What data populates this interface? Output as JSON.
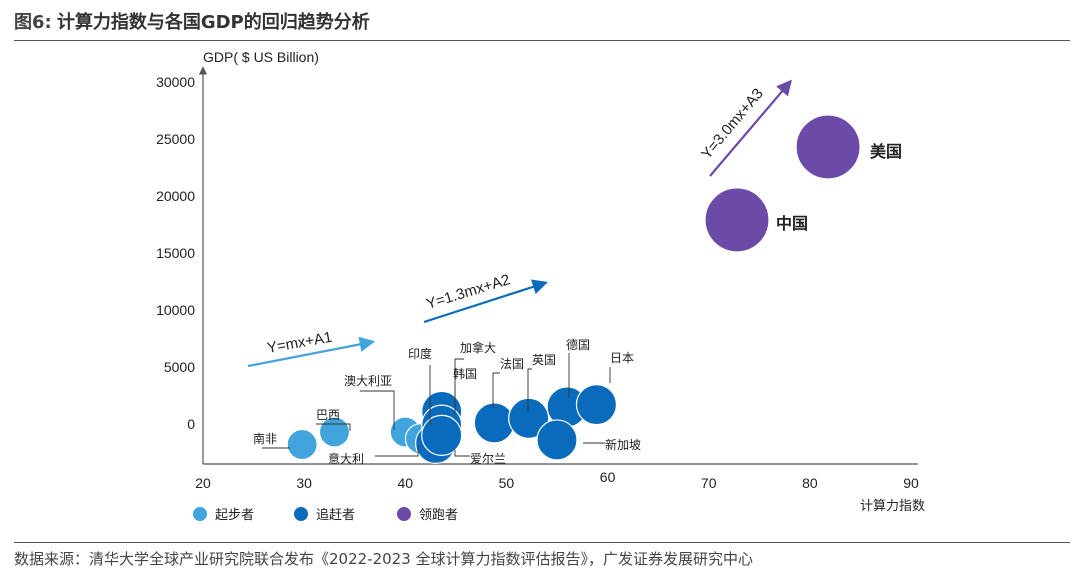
{
  "header": {
    "fig_label": "图6:",
    "title": "计算力指数与各国GDP的回归趋势分析"
  },
  "footer": {
    "source": "数据来源：清华大学全球产业研究院联合发布《2022-2023 全球计算力指数评估报告》，广发证券发展研究中心"
  },
  "colors": {
    "starter": "#41a4dc",
    "chaser": "#0a6bbd",
    "leader": "#6b4aa8",
    "axis": "#555555"
  },
  "chart_data": {
    "type": "scatter",
    "xlabel": "计算力指数",
    "ylabel": "GDP( $ US Billion)",
    "xlim": [
      20,
      90
    ],
    "ylim": [
      -3500,
      31000
    ],
    "x_ticks": [
      {
        "label": "20",
        "value": 20
      },
      {
        "label": "30",
        "value": 30
      },
      {
        "label": "40",
        "value": 40
      },
      {
        "label": "50",
        "value": 50
      },
      {
        "label": "60",
        "value": 60
      },
      {
        "label": "70",
        "value": 70
      },
      {
        "label": "80",
        "value": 80
      },
      {
        "label": "90",
        "value": 90
      }
    ],
    "y_ticks": [
      {
        "label": "30000",
        "value": 30000
      },
      {
        "label": "25000",
        "value": 25000
      },
      {
        "label": "20000",
        "value": 20000
      },
      {
        "label": "15000",
        "value": 15000
      },
      {
        "label": "10000",
        "value": 10000
      },
      {
        "label": "5000",
        "value": 5000
      },
      {
        "label": "0",
        "value": 0
      }
    ],
    "grid": false,
    "legend_position": "bottom-left",
    "series": [
      {
        "name": "起步者",
        "color_key": "starter",
        "points": [
          {
            "label": "南非",
            "x": 29.8,
            "y": -1800
          },
          {
            "label": "巴西",
            "x": 33.0,
            "y": -700
          },
          {
            "label": "澳大利亚",
            "x": 40.0,
            "y": -700
          },
          {
            "label": "意大利",
            "x": 41.5,
            "y": -1300
          }
        ]
      },
      {
        "name": "追赶者",
        "color_key": "chaser",
        "points": [
          {
            "label": "印度",
            "x": 43.0,
            "y": -1700
          },
          {
            "label": "加拿大",
            "x": 43.6,
            "y": 1100
          },
          {
            "label": "韩国",
            "x": 43.6,
            "y": -100
          },
          {
            "label": "爱尔兰",
            "x": 43.6,
            "y": -1000
          },
          {
            "label": "法国",
            "x": 48.8,
            "y": 100
          },
          {
            "label": "英国",
            "x": 52.2,
            "y": 500
          },
          {
            "label": "德国",
            "x": 56.0,
            "y": 1500
          },
          {
            "label": "新加坡",
            "x": 55.0,
            "y": -1400
          },
          {
            "label": "日本",
            "x": 58.9,
            "y": 1700
          }
        ]
      },
      {
        "name": "领跑者",
        "color_key": "leader",
        "points": [
          {
            "label": "中国",
            "x": 72.8,
            "y": 17900
          },
          {
            "label": "美国",
            "x": 81.8,
            "y": 24300
          }
        ]
      }
    ],
    "annotations": [
      {
        "text": "Y=mx+A1"
      },
      {
        "text": "Y=1.3mx+A2"
      },
      {
        "text": "Y=3.0mx+A3"
      }
    ]
  }
}
